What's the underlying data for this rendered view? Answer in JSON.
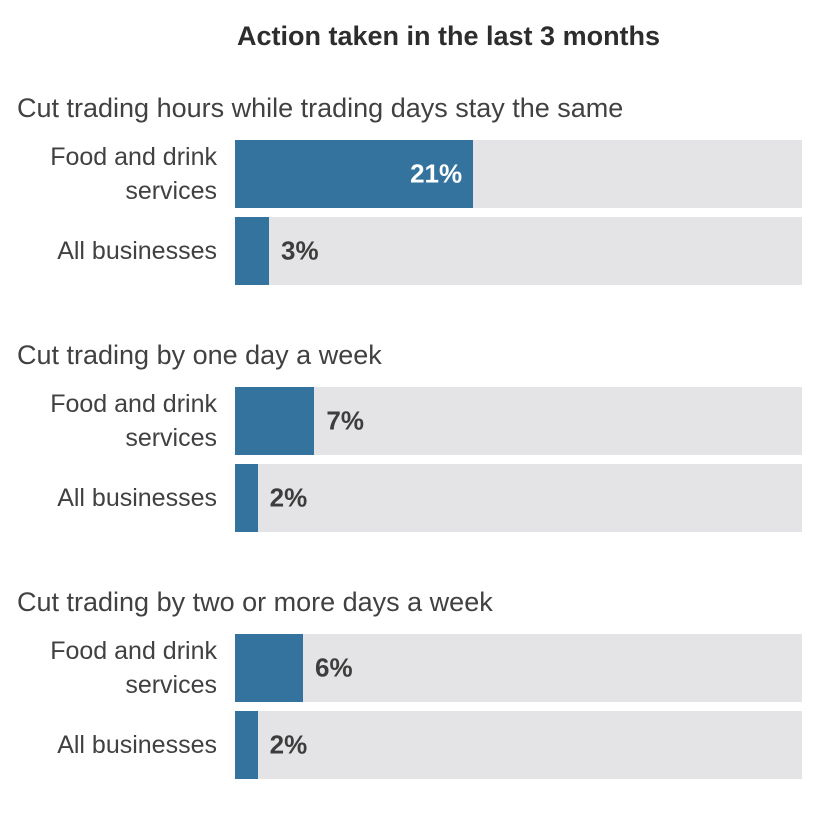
{
  "title": "Action taken in the last 3 months",
  "colors": {
    "bar": "#33739d",
    "track": "#e4e4e6",
    "title_text": "#2d2d2d",
    "body_text": "#414042",
    "value_text_inside": "#ffffff",
    "value_text_outside": "#3d3d3d"
  },
  "chart_data": {
    "type": "bar",
    "orientation": "horizontal",
    "title": "Action taken in the last 3 months",
    "unit": "%",
    "axis_max": 50,
    "grid": false,
    "legend": false,
    "bar_color": "#33739d",
    "track_color": "#e4e4e6",
    "categories": [
      "Food and drink services",
      "All businesses"
    ],
    "sections": [
      {
        "heading": "Cut trading hours while trading days stay the same",
        "rows": [
          {
            "label": "Food and drink services",
            "value": 21,
            "value_label": "21%"
          },
          {
            "label": "All businesses",
            "value": 3,
            "value_label": "3%"
          }
        ]
      },
      {
        "heading": "Cut trading by one day a week",
        "rows": [
          {
            "label": "Food and drink services",
            "value": 7,
            "value_label": "7%"
          },
          {
            "label": "All businesses",
            "value": 2,
            "value_label": "2%"
          }
        ]
      },
      {
        "heading": "Cut trading by two or more days a week",
        "rows": [
          {
            "label": "Food and drink services",
            "value": 6,
            "value_label": "6%"
          },
          {
            "label": "All businesses",
            "value": 2,
            "value_label": "2%"
          }
        ]
      }
    ]
  }
}
